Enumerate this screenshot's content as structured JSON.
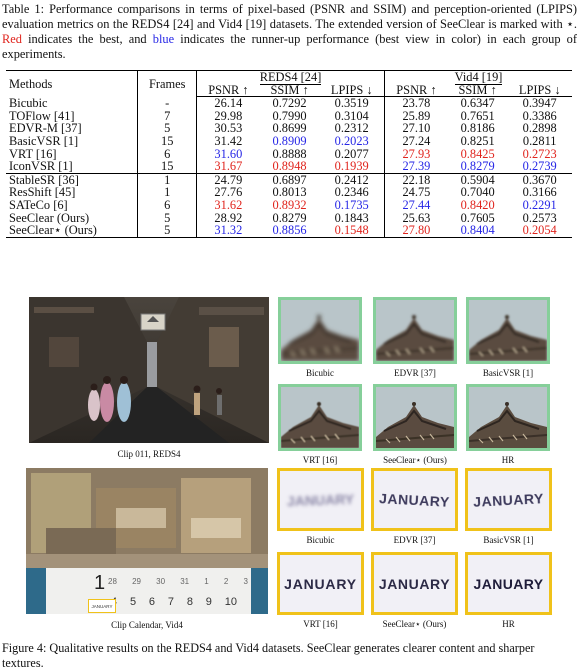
{
  "table_caption": {
    "part1": "Table 1: Performance comparisons in terms of pixel-based (PSNR and SSIM) and perception-oriented (LPIPS) evaluation metrics on the REDS4 [24] and Vid4 [19] datasets. The extended version of SeeClear is marked with ⋆.",
    "red_word": "Red",
    "part2": "indicates the best, and",
    "blue_word": "blue",
    "part3": "indicates the runner-up performance (best view in color) in each group of experiments."
  },
  "table": {
    "col_methods": "Methods",
    "col_frames": "Frames",
    "dataset1": "REDS4 [24]",
    "dataset2": "Vid4 [19]",
    "metrics": [
      "PSNR ↑",
      "SSIM ↑",
      "LPIPS ↓",
      "PSNR ↑",
      "SSIM ↑",
      "LPIPS ↓"
    ],
    "rows": [
      {
        "method": "Bicubic",
        "frames": "-",
        "vals": [
          "26.14",
          "0.7292",
          "0.3519",
          "23.78",
          "0.6347",
          "0.3947"
        ],
        "colors": [
          "",
          "",
          "",
          "",
          "",
          ""
        ]
      },
      {
        "method": "TOFlow [41]",
        "frames": "7",
        "vals": [
          "29.98",
          "0.7990",
          "0.3104",
          "25.89",
          "0.7651",
          "0.3386"
        ],
        "colors": [
          "",
          "",
          "",
          "",
          "",
          ""
        ]
      },
      {
        "method": "EDVR-M [37]",
        "frames": "5",
        "vals": [
          "30.53",
          "0.8699",
          "0.2312",
          "27.10",
          "0.8186",
          "0.2898"
        ],
        "colors": [
          "",
          "",
          "",
          "",
          "",
          ""
        ]
      },
      {
        "method": "BasicVSR [1]",
        "frames": "15",
        "vals": [
          "31.42",
          "0.8909",
          "0.2023",
          "27.24",
          "0.8251",
          "0.2811"
        ],
        "colors": [
          "",
          "blue",
          "blue",
          "",
          "",
          ""
        ]
      },
      {
        "method": "VRT [16]",
        "frames": "6",
        "vals": [
          "31.60",
          "0.8888",
          "0.2077",
          "27.93",
          "0.8425",
          "0.2723"
        ],
        "colors": [
          "blue",
          "",
          "",
          "red",
          "red",
          "red"
        ]
      },
      {
        "method": "IconVSR [1]",
        "frames": "15",
        "vals": [
          "31.67",
          "0.8948",
          "0.1939",
          "27.39",
          "0.8279",
          "0.2739"
        ],
        "colors": [
          "red",
          "red",
          "red",
          "blue",
          "blue",
          "blue"
        ]
      },
      {
        "method": "StableSR [36]",
        "frames": "1",
        "vals": [
          "24.79",
          "0.6897",
          "0.2412",
          "22.18",
          "0.5904",
          "0.3670"
        ],
        "colors": [
          "",
          "",
          "",
          "",
          "",
          ""
        ]
      },
      {
        "method": "ResShift [45]",
        "frames": "1",
        "vals": [
          "27.76",
          "0.8013",
          "0.2346",
          "24.75",
          "0.7040",
          "0.3166"
        ],
        "colors": [
          "",
          "",
          "",
          "",
          "",
          ""
        ]
      },
      {
        "method": "SATeCo [6]",
        "frames": "6",
        "vals": [
          "31.62",
          "0.8932",
          "0.1735",
          "27.44",
          "0.8420",
          "0.2291"
        ],
        "colors": [
          "red",
          "red",
          "blue",
          "blue",
          "red",
          "blue"
        ]
      },
      {
        "method": "SeeClear (Ours)",
        "frames": "5",
        "vals": [
          "28.92",
          "0.8279",
          "0.1843",
          "25.63",
          "0.7605",
          "0.2573"
        ],
        "colors": [
          "",
          "",
          "",
          "",
          "",
          ""
        ]
      },
      {
        "method": "SeeClear⋆ (Ours)",
        "frames": "5",
        "vals": [
          "31.32",
          "0.8856",
          "0.1548",
          "27.80",
          "0.8404",
          "0.2054"
        ],
        "colors": [
          "blue",
          "blue",
          "red",
          "red",
          "blue",
          "red"
        ]
      }
    ]
  },
  "figure": {
    "top_clip_label": "Clip 011, REDS4",
    "top_thumb_labels": [
      "Bicubic",
      "EDVR [37]",
      "BasicVSR [1]",
      "VRT [16]",
      "SeeClear⋆ (Ours)",
      "HR"
    ],
    "bottom_clip_label": "Clip Calendar, Vid4",
    "bottom_thumb_labels": [
      "Bicubic",
      "EDVR [37]",
      "BasicVSR [1]",
      "VRT [16]",
      "SeeClear⋆ (Ours)",
      "HR"
    ],
    "calendar_numbers_row1": [
      "28",
      "29",
      "30",
      "31",
      "1",
      "2",
      "3"
    ],
    "calendar_numbers_row2": [
      "4",
      "5",
      "6",
      "7",
      "8",
      "9",
      "10"
    ],
    "calendar_big_number": "1",
    "calendar_tag": "JANUARY",
    "thumb_texts": [
      "JANUARY",
      "JANUARY",
      "JANUARY",
      "JANUARY",
      "JANUARY",
      "JANUARY"
    ],
    "frame_colors": {
      "green": "#86cf9a",
      "yellow": "#f0c21a"
    }
  },
  "figure_caption": "Figure 4: Qualitative results on the REDS4 and Vid4 datasets. SeeClear generates clearer content and sharper textures."
}
